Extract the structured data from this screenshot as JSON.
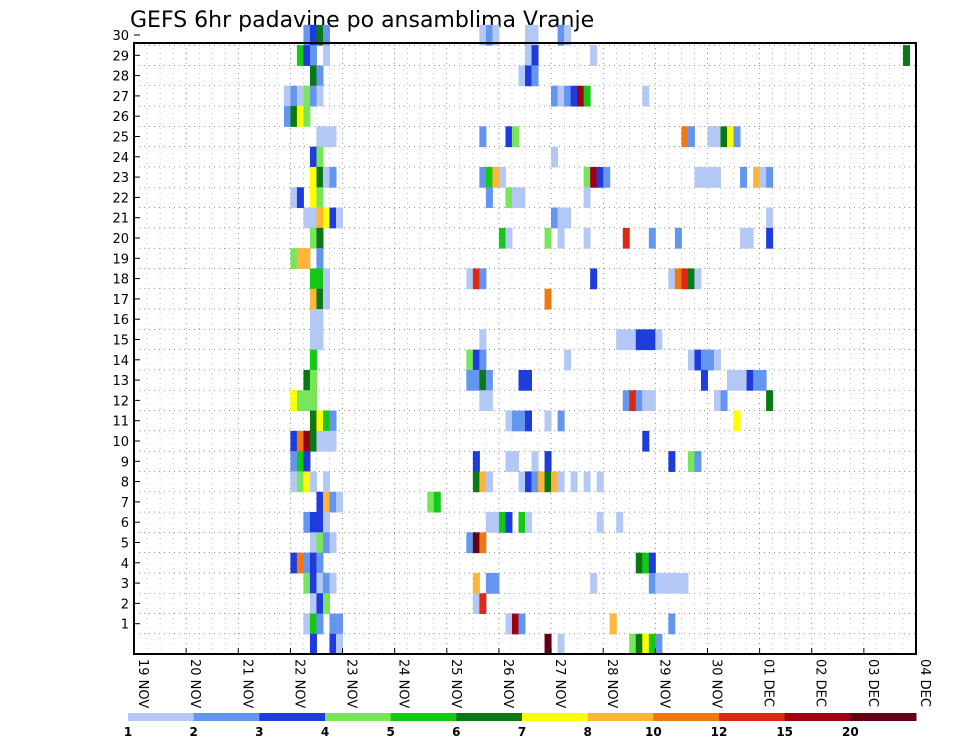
{
  "chart_data": {
    "type": "heatmap",
    "title": "GEFS 6hr padavine po ansamblima Vranje",
    "y_ticks": [
      1,
      2,
      3,
      4,
      5,
      6,
      7,
      8,
      9,
      10,
      11,
      12,
      13,
      14,
      15,
      16,
      17,
      18,
      19,
      20,
      21,
      22,
      23,
      24,
      25,
      26,
      27,
      28,
      29,
      30
    ],
    "x_ticks": [
      "19 NOV",
      "20 NOV",
      "21 NOV",
      "22 NOV",
      "23 NOV",
      "24 NOV",
      "25 NOV",
      "26 NOV",
      "27 NOV",
      "28 NOV",
      "29 NOV",
      "30 NOV",
      "01 DEC",
      "02 DEC",
      "03 DEC",
      "04 DEC"
    ],
    "grid": "dotted",
    "legend": {
      "position": "bottom",
      "labels": [
        "1",
        "2",
        "3",
        "4",
        "5",
        "6",
        "7",
        "8",
        "10",
        "12",
        "15",
        "20"
      ],
      "colors": [
        "#b4c8f5",
        "#6496f0",
        "#1e3cdc",
        "#78e65a",
        "#14c814",
        "#0a7814",
        "#ffff00",
        "#ffb43c",
        "#f07814",
        "#dc2814",
        "#a00014",
        "#640014"
      ]
    },
    "cells": [
      [
        30,
        26,
        2
      ],
      [
        30,
        27,
        3
      ],
      [
        30,
        28,
        6
      ],
      [
        30,
        29,
        2
      ],
      [
        30,
        53,
        1
      ],
      [
        30,
        54,
        2
      ],
      [
        30,
        55,
        1
      ],
      [
        30,
        60,
        1
      ],
      [
        30,
        61,
        1
      ],
      [
        30,
        65,
        2
      ],
      [
        30,
        66,
        1
      ],
      [
        29,
        25,
        5
      ],
      [
        29,
        26,
        3
      ],
      [
        29,
        27,
        2
      ],
      [
        29,
        29,
        1
      ],
      [
        29,
        60,
        1
      ],
      [
        29,
        61,
        3
      ],
      [
        29,
        70,
        1
      ],
      [
        29,
        118,
        6
      ],
      [
        28,
        27,
        6
      ],
      [
        28,
        28,
        2
      ],
      [
        28,
        59,
        1
      ],
      [
        28,
        60,
        3
      ],
      [
        28,
        61,
        2
      ],
      [
        27,
        23,
        1
      ],
      [
        27,
        24,
        2
      ],
      [
        27,
        25,
        1
      ],
      [
        27,
        26,
        4
      ],
      [
        27,
        27,
        2
      ],
      [
        27,
        28,
        1
      ],
      [
        27,
        64,
        2
      ],
      [
        27,
        65,
        1
      ],
      [
        27,
        66,
        2
      ],
      [
        27,
        67,
        3
      ],
      [
        27,
        68,
        11
      ],
      [
        27,
        69,
        5
      ],
      [
        27,
        78,
        1
      ],
      [
        26,
        23,
        2
      ],
      [
        26,
        24,
        6
      ],
      [
        26,
        25,
        7
      ],
      [
        26,
        26,
        4
      ],
      [
        25,
        28,
        1
      ],
      [
        25,
        29,
        1
      ],
      [
        25,
        30,
        1
      ],
      [
        25,
        53,
        2
      ],
      [
        25,
        57,
        3
      ],
      [
        25,
        58,
        4
      ],
      [
        25,
        84,
        9
      ],
      [
        25,
        85,
        2
      ],
      [
        25,
        88,
        1
      ],
      [
        25,
        89,
        1
      ],
      [
        25,
        90,
        6
      ],
      [
        25,
        91,
        7
      ],
      [
        25,
        92,
        2
      ],
      [
        24,
        27,
        3
      ],
      [
        24,
        28,
        4
      ],
      [
        24,
        64,
        1
      ],
      [
        23,
        27,
        7
      ],
      [
        23,
        28,
        6
      ],
      [
        23,
        29,
        1
      ],
      [
        23,
        30,
        2
      ],
      [
        23,
        53,
        2
      ],
      [
        23,
        54,
        5
      ],
      [
        23,
        55,
        8
      ],
      [
        23,
        56,
        1
      ],
      [
        23,
        69,
        4
      ],
      [
        23,
        70,
        11
      ],
      [
        23,
        71,
        3
      ],
      [
        23,
        72,
        2
      ],
      [
        23,
        86,
        1
      ],
      [
        23,
        87,
        1
      ],
      [
        23,
        88,
        1
      ],
      [
        23,
        89,
        1
      ],
      [
        23,
        93,
        2
      ],
      [
        23,
        95,
        8
      ],
      [
        23,
        96,
        1
      ],
      [
        23,
        97,
        2
      ],
      [
        22,
        24,
        1
      ],
      [
        22,
        25,
        3
      ],
      [
        22,
        27,
        7
      ],
      [
        22,
        28,
        4
      ],
      [
        22,
        54,
        2
      ],
      [
        22,
        57,
        4
      ],
      [
        22,
        58,
        1
      ],
      [
        22,
        59,
        1
      ],
      [
        22,
        69,
        1
      ],
      [
        21,
        26,
        1
      ],
      [
        21,
        27,
        1
      ],
      [
        21,
        28,
        8
      ],
      [
        21,
        29,
        7
      ],
      [
        21,
        30,
        3
      ],
      [
        21,
        31,
        1
      ],
      [
        21,
        64,
        2
      ],
      [
        21,
        65,
        1
      ],
      [
        21,
        66,
        1
      ],
      [
        21,
        97,
        1
      ],
      [
        20,
        27,
        4
      ],
      [
        20,
        28,
        6
      ],
      [
        20,
        56,
        5
      ],
      [
        20,
        57,
        1
      ],
      [
        20,
        63,
        4
      ],
      [
        20,
        65,
        1
      ],
      [
        20,
        69,
        1
      ],
      [
        20,
        75,
        10
      ],
      [
        20,
        79,
        2
      ],
      [
        20,
        83,
        2
      ],
      [
        20,
        93,
        1
      ],
      [
        20,
        94,
        1
      ],
      [
        20,
        97,
        3
      ],
      [
        19,
        24,
        4
      ],
      [
        19,
        25,
        8
      ],
      [
        19,
        26,
        8
      ],
      [
        19,
        28,
        2
      ],
      [
        18,
        27,
        5
      ],
      [
        18,
        28,
        5
      ],
      [
        18,
        29,
        1
      ],
      [
        18,
        51,
        1
      ],
      [
        18,
        52,
        10
      ],
      [
        18,
        53,
        2
      ],
      [
        18,
        70,
        3
      ],
      [
        18,
        82,
        1
      ],
      [
        18,
        83,
        9
      ],
      [
        18,
        84,
        10
      ],
      [
        18,
        85,
        6
      ],
      [
        18,
        86,
        1
      ],
      [
        17,
        27,
        8
      ],
      [
        17,
        28,
        6
      ],
      [
        17,
        29,
        1
      ],
      [
        17,
        63,
        9
      ],
      [
        16,
        27,
        1
      ],
      [
        16,
        28,
        1
      ],
      [
        15,
        27,
        1
      ],
      [
        15,
        28,
        1
      ],
      [
        15,
        53,
        1
      ],
      [
        15,
        74,
        1
      ],
      [
        15,
        75,
        1
      ],
      [
        15,
        76,
        1
      ],
      [
        15,
        77,
        3
      ],
      [
        15,
        78,
        3
      ],
      [
        15,
        79,
        3
      ],
      [
        15,
        80,
        1
      ],
      [
        14,
        27,
        5
      ],
      [
        14,
        51,
        4
      ],
      [
        14,
        52,
        3
      ],
      [
        14,
        53,
        2
      ],
      [
        14,
        66,
        1
      ],
      [
        14,
        85,
        1
      ],
      [
        14,
        86,
        3
      ],
      [
        14,
        87,
        2
      ],
      [
        14,
        88,
        2
      ],
      [
        14,
        89,
        1
      ],
      [
        13,
        26,
        6
      ],
      [
        13,
        27,
        4
      ],
      [
        13,
        51,
        2
      ],
      [
        13,
        52,
        2
      ],
      [
        13,
        53,
        6
      ],
      [
        13,
        54,
        2
      ],
      [
        13,
        59,
        3
      ],
      [
        13,
        60,
        3
      ],
      [
        13,
        87,
        3
      ],
      [
        13,
        91,
        1
      ],
      [
        13,
        92,
        1
      ],
      [
        13,
        93,
        1
      ],
      [
        13,
        94,
        3
      ],
      [
        13,
        95,
        2
      ],
      [
        13,
        96,
        2
      ],
      [
        12,
        24,
        7
      ],
      [
        12,
        25,
        4
      ],
      [
        12,
        26,
        4
      ],
      [
        12,
        27,
        4
      ],
      [
        12,
        53,
        1
      ],
      [
        12,
        54,
        1
      ],
      [
        12,
        75,
        2
      ],
      [
        12,
        76,
        10
      ],
      [
        12,
        77,
        2
      ],
      [
        12,
        78,
        1
      ],
      [
        12,
        79,
        1
      ],
      [
        12,
        89,
        1
      ],
      [
        12,
        90,
        2
      ],
      [
        12,
        97,
        6
      ],
      [
        11,
        27,
        6
      ],
      [
        11,
        28,
        7
      ],
      [
        11,
        29,
        5
      ],
      [
        11,
        30,
        2
      ],
      [
        11,
        57,
        1
      ],
      [
        11,
        58,
        2
      ],
      [
        11,
        59,
        2
      ],
      [
        11,
        60,
        3
      ],
      [
        11,
        63,
        1
      ],
      [
        11,
        65,
        2
      ],
      [
        11,
        92,
        7
      ],
      [
        10,
        24,
        3
      ],
      [
        10,
        25,
        9
      ],
      [
        10,
        26,
        11
      ],
      [
        10,
        27,
        6
      ],
      [
        10,
        28,
        1
      ],
      [
        10,
        29,
        1
      ],
      [
        10,
        30,
        1
      ],
      [
        10,
        78,
        3
      ],
      [
        9,
        24,
        2
      ],
      [
        9,
        25,
        5
      ],
      [
        9,
        26,
        3
      ],
      [
        9,
        52,
        3
      ],
      [
        9,
        57,
        1
      ],
      [
        9,
        58,
        1
      ],
      [
        9,
        61,
        1
      ],
      [
        9,
        63,
        3
      ],
      [
        9,
        82,
        3
      ],
      [
        9,
        85,
        4
      ],
      [
        9,
        86,
        2
      ],
      [
        8,
        24,
        1
      ],
      [
        8,
        25,
        4
      ],
      [
        8,
        26,
        7
      ],
      [
        8,
        27,
        1
      ],
      [
        8,
        29,
        1
      ],
      [
        8,
        52,
        6
      ],
      [
        8,
        53,
        8
      ],
      [
        8,
        54,
        1
      ],
      [
        8,
        59,
        1
      ],
      [
        8,
        60,
        3
      ],
      [
        8,
        61,
        2
      ],
      [
        8,
        62,
        8
      ],
      [
        8,
        63,
        6
      ],
      [
        8,
        64,
        8
      ],
      [
        8,
        65,
        1
      ],
      [
        8,
        67,
        1
      ],
      [
        8,
        69,
        1
      ],
      [
        8,
        71,
        1
      ],
      [
        7,
        28,
        3
      ],
      [
        7,
        29,
        8
      ],
      [
        7,
        30,
        2
      ],
      [
        7,
        31,
        1
      ],
      [
        7,
        45,
        4
      ],
      [
        7,
        46,
        5
      ],
      [
        6,
        26,
        2
      ],
      [
        6,
        27,
        3
      ],
      [
        6,
        28,
        3
      ],
      [
        6,
        29,
        1
      ],
      [
        6,
        54,
        1
      ],
      [
        6,
        55,
        1
      ],
      [
        6,
        56,
        5
      ],
      [
        6,
        57,
        3
      ],
      [
        6,
        59,
        5
      ],
      [
        6,
        60,
        1
      ],
      [
        6,
        71,
        1
      ],
      [
        6,
        74,
        1
      ],
      [
        5,
        27,
        1
      ],
      [
        5,
        28,
        4
      ],
      [
        5,
        29,
        2
      ],
      [
        5,
        30,
        1
      ],
      [
        5,
        51,
        2
      ],
      [
        5,
        52,
        12
      ],
      [
        5,
        53,
        9
      ],
      [
        4,
        24,
        3
      ],
      [
        4,
        25,
        9
      ],
      [
        4,
        26,
        2
      ],
      [
        4,
        27,
        3
      ],
      [
        4,
        28,
        2
      ],
      [
        4,
        77,
        6
      ],
      [
        4,
        78,
        5
      ],
      [
        4,
        79,
        3
      ],
      [
        3,
        26,
        4
      ],
      [
        3,
        27,
        3
      ],
      [
        3,
        28,
        1
      ],
      [
        3,
        29,
        2
      ],
      [
        3,
        30,
        1
      ],
      [
        3,
        52,
        8
      ],
      [
        3,
        54,
        2
      ],
      [
        3,
        55,
        2
      ],
      [
        3,
        70,
        1
      ],
      [
        3,
        79,
        2
      ],
      [
        3,
        80,
        1
      ],
      [
        3,
        81,
        1
      ],
      [
        3,
        82,
        1
      ],
      [
        3,
        83,
        1
      ],
      [
        3,
        84,
        1
      ],
      [
        2,
        27,
        1
      ],
      [
        2,
        28,
        3
      ],
      [
        2,
        29,
        4
      ],
      [
        2,
        52,
        1
      ],
      [
        2,
        53,
        10
      ],
      [
        1,
        26,
        1
      ],
      [
        1,
        27,
        5
      ],
      [
        1,
        28,
        2
      ],
      [
        1,
        30,
        2
      ],
      [
        1,
        31,
        2
      ],
      [
        1,
        57,
        1
      ],
      [
        1,
        58,
        11
      ],
      [
        1,
        59,
        2
      ],
      [
        1,
        73,
        8
      ],
      [
        1,
        82,
        2
      ],
      [
        0,
        27,
        3
      ],
      [
        0,
        30,
        3
      ],
      [
        0,
        31,
        1
      ],
      [
        0,
        63,
        12
      ],
      [
        0,
        65,
        1
      ],
      [
        0,
        76,
        4
      ],
      [
        0,
        77,
        6
      ],
      [
        0,
        78,
        7
      ],
      [
        0,
        79,
        5
      ],
      [
        0,
        80,
        2
      ]
    ]
  }
}
